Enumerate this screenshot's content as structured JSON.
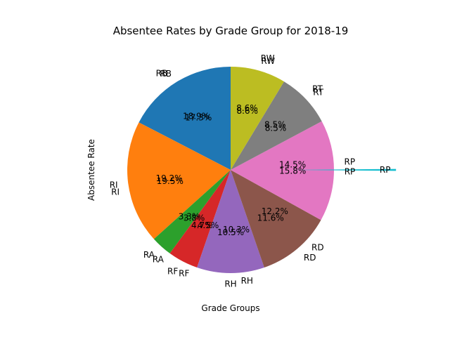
{
  "chart_data": {
    "type": "pie",
    "title": "Absentee Rates by Grade Group for 2018-19",
    "xlabel": "Grade Groups",
    "ylabel": "Absentee Rate",
    "start_angle_deg": 90,
    "direction": "counterclockwise",
    "slices": [
      {
        "label": "RB",
        "value": 17.3,
        "color": "#1f77b4"
      },
      {
        "label": "RI",
        "value": 19.2,
        "color": "#ff7f0e"
      },
      {
        "label": "RA",
        "value": 3.3,
        "color": "#2ca02c"
      },
      {
        "label": "RF",
        "value": 4.7,
        "color": "#d62728"
      },
      {
        "label": "RH",
        "value": 10.5,
        "color": "#9467bd"
      },
      {
        "label": "RD",
        "value": 11.6,
        "color": "#8c564b"
      },
      {
        "label": "RP",
        "value": 15.8,
        "color": "#e377c2"
      },
      {
        "label": "RT",
        "value": 8.5,
        "color": "#7f7f7f"
      },
      {
        "label": "RW",
        "value": 8.6,
        "color": "#bcbd22"
      }
    ],
    "overlay_slices": [
      {
        "label": "RB",
        "value": 18.9
      },
      {
        "label": "RI",
        "value": 19.5
      },
      {
        "label": "RA",
        "value": 3.8
      },
      {
        "label": "RF",
        "value": 4.5
      },
      {
        "label": "RH",
        "value": 10.3
      },
      {
        "label": "RD",
        "value": 12.2
      },
      {
        "label": "RP",
        "value": 14.5
      },
      {
        "label": "RT",
        "value": 8.5
      },
      {
        "label": "RW",
        "value": 8.6
      }
    ],
    "thin_slice": {
      "label": "RP",
      "value": 0.3,
      "color": "#17becf",
      "explode": 0.6
    }
  }
}
